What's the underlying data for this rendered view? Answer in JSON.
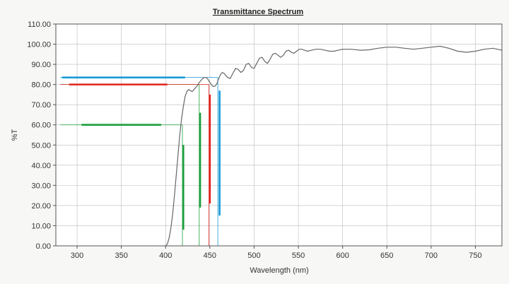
{
  "chart_data": {
    "type": "line",
    "title": "Transmittance Spectrum",
    "xlabel": "Wavelength (nm)",
    "ylabel": "%T",
    "xlim": [
      276,
      780
    ],
    "ylim": [
      0,
      110
    ],
    "x_ticks": [
      "300",
      "350",
      "400",
      "450",
      "500",
      "550",
      "600",
      "650",
      "700",
      "750"
    ],
    "y_ticks": [
      "0.00",
      "10.00",
      "20.00",
      "30.00",
      "40.00",
      "50.00",
      "60.00",
      "70.00",
      "80.00",
      "90.00",
      "100.00",
      "110.00"
    ],
    "grid": true,
    "series": [
      {
        "name": "",
        "color": "#666666",
        "x": [
          400,
          402,
          404,
          406,
          408,
          410,
          412,
          414,
          416,
          418,
          420,
          422,
          424,
          426,
          428,
          430,
          432,
          434,
          436,
          438,
          440,
          442,
          444,
          446,
          448,
          450,
          452,
          454,
          456,
          458,
          460,
          462,
          464,
          466,
          468,
          470,
          473,
          476,
          479,
          482,
          485,
          488,
          491,
          494,
          497,
          500,
          503,
          506,
          509,
          512,
          515,
          518,
          521,
          524,
          527,
          530,
          533,
          536,
          539,
          542,
          545,
          548,
          551,
          554,
          557,
          560,
          565,
          570,
          575,
          580,
          585,
          590,
          595,
          600,
          610,
          620,
          630,
          640,
          650,
          660,
          670,
          680,
          690,
          700,
          710,
          720,
          730,
          740,
          750,
          760,
          770,
          780
        ],
        "y": [
          0.0,
          1.0,
          4.0,
          9.0,
          16.0,
          25.0,
          35.0,
          45.0,
          55.0,
          63.0,
          69.0,
          74.0,
          76.5,
          77.5,
          77.0,
          76.5,
          77.5,
          78.5,
          79.5,
          81.0,
          82.0,
          83.0,
          83.5,
          83.5,
          82.5,
          81.0,
          79.8,
          79.0,
          79.2,
          80.5,
          83.0,
          85.0,
          86.0,
          85.5,
          84.5,
          83.5,
          83.0,
          85.5,
          88.0,
          87.5,
          86.0,
          87.0,
          90.0,
          90.5,
          88.5,
          88.0,
          90.5,
          93.0,
          93.5,
          91.5,
          90.5,
          92.5,
          95.0,
          95.5,
          94.5,
          93.5,
          94.5,
          96.5,
          97.0,
          96.0,
          95.5,
          96.5,
          97.5,
          97.5,
          97.0,
          96.5,
          97.0,
          97.5,
          97.5,
          97.0,
          96.5,
          96.5,
          97.0,
          97.5,
          97.5,
          97.0,
          97.2,
          98.0,
          98.5,
          98.5,
          98.0,
          97.5,
          98.0,
          98.5,
          99.0,
          98.0,
          96.5,
          96.0,
          96.5,
          97.5,
          98.0,
          97.0
        ]
      }
    ],
    "markers": [
      {
        "name": "green-60",
        "color": "#1c9e3a",
        "level": 60,
        "wavelength": 419,
        "x_from": 281
      },
      {
        "name": "green-80",
        "color": "#1c9e3a",
        "level": 80,
        "wavelength": 438,
        "x_from": 281
      },
      {
        "name": "red-80",
        "color": "#e0221d",
        "level": 80,
        "wavelength": 449,
        "x_from": 281
      },
      {
        "name": "blue-83",
        "color": "#1a9ad6",
        "level": 83.5,
        "wavelength": 459,
        "x_from": 281
      }
    ],
    "highlight_bars": [
      {
        "color": "#1c9e3a",
        "x_from": 305,
        "x_to": 395,
        "level": 60
      },
      {
        "color": "#e0221d",
        "x_from": 291,
        "x_to": 402,
        "level": 80
      },
      {
        "color": "#1a9ad6",
        "x_from": 283,
        "x_to": 422,
        "level": 83.5
      },
      {
        "color": "#1c9e3a",
        "wavelength": 420,
        "y_from": 8,
        "y_to": 50
      },
      {
        "color": "#1c9e3a",
        "wavelength": 439,
        "y_from": 19,
        "y_to": 66
      },
      {
        "color": "#e0221d",
        "wavelength": 450,
        "y_from": 21,
        "y_to": 75
      },
      {
        "color": "#1a9ad6",
        "wavelength": 461,
        "y_from": 15,
        "y_to": 77
      }
    ]
  }
}
